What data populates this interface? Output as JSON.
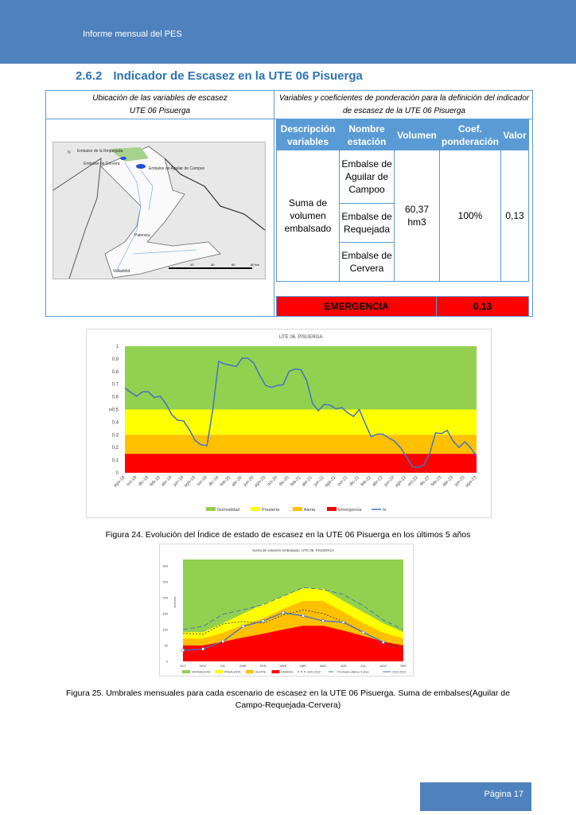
{
  "header": {
    "title": "Informe mensual del PES"
  },
  "section": {
    "number": "2.6.2",
    "title": "Indicador de Escasez en la UTE 06 Pisuerga"
  },
  "table": {
    "left_header": [
      "Ubicación de las variables de escasez",
      "UTE 06 Pisuerga"
    ],
    "right_header": [
      "Variables y coeficientes de ponderación para la definición del indicador",
      "de escasez de la UTE 06 Pisuerga"
    ],
    "map_labels": {
      "reservoir_requejada": "Embalse de la Requejada",
      "reservoir_cervera": "Embalse de Cervera",
      "reservoir_aguilar": "Embalse de Aguilar de Campoo",
      "city_palencia": "Palencia",
      "city_valladolid": "Valladolid",
      "north": "N",
      "scale": [
        "20",
        "40",
        "60",
        "80 km"
      ]
    },
    "columns": [
      "Descripción variables",
      "Nombre estación",
      "Volumen",
      "Coef. ponderación",
      "Valor"
    ],
    "row": {
      "descripcion": "Suma de volumen embalsado",
      "estaciones": [
        "Embalse de Aguilar de Campoo",
        "Embalse de Requejada",
        "Embalse de Cervera"
      ],
      "volumen": "60,37 hm3",
      "coef": "100%",
      "valor": "0,13"
    },
    "status": {
      "label": "EMERGENCIA",
      "value": "0,13",
      "color": "#ff0000"
    }
  },
  "chart_data": [
    {
      "type": "line",
      "title": "UTE 06. PISUERGA",
      "ylabel": "Ie",
      "ylim": [
        0,
        1
      ],
      "yticks": [
        "0",
        "0,1",
        "0,2",
        "0,3",
        "0,4",
        "0,5",
        "0,6",
        "0,7",
        "0,8",
        "0,9",
        "1"
      ],
      "x": [
        "ago-18",
        "sep-18",
        "oct-18",
        "nov-18",
        "dic-18",
        "ene-19",
        "feb-19",
        "mar-19",
        "abr-19",
        "may-19",
        "jun-19",
        "jul-19",
        "ago-19",
        "sep-19",
        "oct-19",
        "nov-19",
        "dic-19",
        "ene-20",
        "feb-20",
        "mar-20",
        "abr-20",
        "may-20",
        "jun-20",
        "jul-20",
        "ago-20",
        "sep-20",
        "oct-20",
        "nov-20",
        "dic-20",
        "ene-21",
        "feb-21",
        "mar-21",
        "abr-21",
        "may-21",
        "jun-21",
        "jul-21",
        "ago-21",
        "sep-21",
        "oct-21",
        "nov-21",
        "dic-21",
        "ene-22",
        "feb-22",
        "mar-22",
        "abr-22",
        "may-22",
        "jun-22",
        "jul-22",
        "ago-22",
        "sep-22",
        "oct-22",
        "nov-22",
        "dic-22",
        "ene-23",
        "feb-23",
        "mar-23",
        "abr-23",
        "may-23",
        "jun-23",
        "jul-23",
        "ago-23"
      ],
      "bands": [
        {
          "name": "Emergencia",
          "from": 0,
          "to": 0.15,
          "color": "#ff0000"
        },
        {
          "name": "Alerta",
          "from": 0.15,
          "to": 0.3,
          "color": "#ffc000"
        },
        {
          "name": "Prealerta",
          "from": 0.3,
          "to": 0.5,
          "color": "#ffff00"
        },
        {
          "name": "Normalidad",
          "from": 0.5,
          "to": 1,
          "color": "#92d050"
        }
      ],
      "legend": [
        "Normalidad",
        "Prealerta",
        "Alerta",
        "Emergencia",
        "Ie"
      ],
      "legend_position": "bottom",
      "series": [
        {
          "name": "Ie",
          "color": "#4472c4",
          "values": [
            0.67,
            0.635,
            0.605,
            0.64,
            0.64,
            0.595,
            0.605,
            0.545,
            0.46,
            0.415,
            0.41,
            0.34,
            0.255,
            0.22,
            0.215,
            0.5,
            0.88,
            0.86,
            0.85,
            0.84,
            0.905,
            0.905,
            0.865,
            0.77,
            0.69,
            0.675,
            0.69,
            0.695,
            0.8,
            0.82,
            0.815,
            0.73,
            0.55,
            0.49,
            0.54,
            0.535,
            0.505,
            0.515,
            0.475,
            0.445,
            0.5,
            0.39,
            0.285,
            0.305,
            0.305,
            0.275,
            0.25,
            0.2,
            0.13,
            0.05,
            0.04,
            0.06,
            0.15,
            0.315,
            0.31,
            0.335,
            0.25,
            0.2,
            0.245,
            0.195,
            0.13
          ]
        }
      ]
    },
    {
      "type": "area",
      "title": "Suma de volumen embalsado. UTE 06. PISUERGA",
      "ylabel": "hm3/mes",
      "ylim": [
        0,
        300
      ],
      "yticks": [
        "0",
        "50",
        "100",
        "150",
        "200",
        "250",
        "300"
      ],
      "categories": [
        "OCT",
        "NOV",
        "DIC",
        "ENE",
        "FEB",
        "MAR",
        "ABR",
        "MAY",
        "JUN",
        "JUL",
        "AGO",
        "SEP"
      ],
      "areas": [
        {
          "name": "NORMALIDAD",
          "color": "#92d050",
          "values": [
            320,
            320,
            320,
            320,
            320,
            320,
            320,
            320,
            320,
            320,
            320,
            320
          ]
        },
        {
          "name": "PREALERTA",
          "color": "#ffff00",
          "values": [
            92,
            92,
            120,
            150,
            180,
            205,
            230,
            228,
            190,
            155,
            120,
            92
          ]
        },
        {
          "name": "ALERTA",
          "color": "#ffc000",
          "values": [
            72,
            72,
            90,
            115,
            135,
            165,
            190,
            190,
            155,
            120,
            90,
            72
          ]
        },
        {
          "name": "EMERGE",
          "color": "#ff0000",
          "values": [
            50,
            50,
            62,
            75,
            87,
            100,
            112,
            112,
            97,
            80,
            62,
            50
          ]
        }
      ],
      "lines": [
        {
          "name": "2021-2022",
          "color": "#404040",
          "dash": "2,2",
          "values": [
            88,
            85,
            118,
            125,
            120,
            145,
            162,
            150,
            125,
            92,
            60,
            40
          ]
        },
        {
          "name": "Promedio últimos 5 años",
          "color": "#4472c4",
          "dash": "6,3",
          "values": [
            100,
            110,
            148,
            162,
            178,
            205,
            232,
            226,
            210,
            175,
            130,
            100
          ]
        },
        {
          "name": "2022-2023",
          "color": "#4472c4",
          "dash": "",
          "markers": true,
          "values": [
            35,
            39,
            63,
            110,
            127,
            153,
            143,
            127,
            123,
            91,
            60,
            null
          ]
        }
      ],
      "legend_position": "bottom"
    }
  ],
  "captions": {
    "fig24": "Figura 24.   Evolución del Índice de estado de escasez en la UTE 06 Pisuerga en los últimos 5 años",
    "fig25": [
      "Figura 25.   Umbrales mensuales para cada escenario de escasez en la UTE 06 Pisuerga. Suma de embalses(Aguilar de",
      "Campo-Requejada-Cervera)"
    ]
  },
  "footer": {
    "page": "Página 17"
  }
}
